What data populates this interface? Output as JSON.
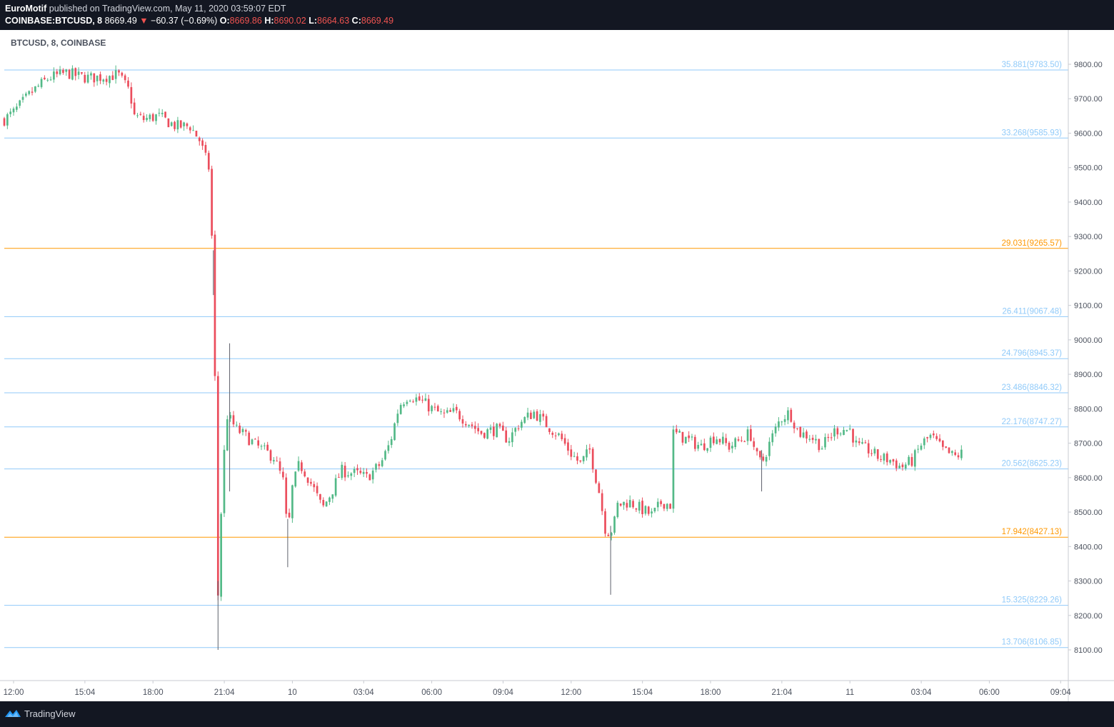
{
  "header": {
    "author": "EuroMotif",
    "published_text": " published on TradingView.com, May 11, 2020 03:59:07 EDT",
    "symbol": "COINBASE:BTCUSD, 8",
    "last": "8669.49",
    "change": "−60.37 (−0.69%)",
    "o_label": "O:",
    "o_value": "8669.86",
    "h_label": "H:",
    "h_value": "8690.02",
    "l_label": "L:",
    "l_value": "8664.63",
    "c_label": "C:",
    "c_value": "8669.49"
  },
  "footer": {
    "brand": "TradingView",
    "logo_icon": "tradingview-logo-icon"
  },
  "colors": {
    "up": "#26a69a",
    "up_body": "#53b987",
    "down": "#eb4d5c",
    "fib_blue": "#90caf9",
    "fib_orange": "#ff9800",
    "axis_text": "#4c525e"
  },
  "chart_data": {
    "type": "candlestick",
    "title": "BTCUSD, 8, COINBASE",
    "ylim": [
      8000,
      9880
    ],
    "y_ticks": [
      8100,
      8200,
      8300,
      8400,
      8500,
      8600,
      8700,
      8800,
      8900,
      9000,
      9100,
      9200,
      9300,
      9400,
      9500,
      9600,
      9700,
      9800
    ],
    "y_tick_labels": [
      "8100.00",
      "8200.00",
      "8300.00",
      "8400.00",
      "8500.00",
      "8600.00",
      "8700.00",
      "8800.00",
      "8900.00",
      "9000.00",
      "9100.00",
      "9200.00",
      "9300.00",
      "9400.00",
      "9500.00",
      "9600.00",
      "9700.00",
      "9800.00"
    ],
    "x_range_hours": [
      -0.4,
      45.4
    ],
    "x_ticks": [
      {
        "label": "12:00",
        "h": 0
      },
      {
        "label": "15:04",
        "h": 3.07
      },
      {
        "label": "18:00",
        "h": 6
      },
      {
        "label": "21:04",
        "h": 9.07
      },
      {
        "label": "10",
        "h": 12
      },
      {
        "label": "03:04",
        "h": 15.07
      },
      {
        "label": "06:00",
        "h": 18
      },
      {
        "label": "09:04",
        "h": 21.07
      },
      {
        "label": "12:00",
        "h": 24
      },
      {
        "label": "15:04",
        "h": 27.07
      },
      {
        "label": "18:00",
        "h": 30
      },
      {
        "label": "21:04",
        "h": 33.07
      },
      {
        "label": "11",
        "h": 36
      },
      {
        "label": "03:04",
        "h": 39.07
      },
      {
        "label": "06:00",
        "h": 42
      },
      {
        "label": "09:04",
        "h": 45.07
      }
    ],
    "fib_levels": [
      {
        "label": "35.881(9783.50)",
        "price": 9783.5,
        "color": "blue"
      },
      {
        "label": "33.268(9585.93)",
        "price": 9585.93,
        "color": "blue"
      },
      {
        "label": "29.031(9265.57)",
        "price": 9265.57,
        "color": "orange"
      },
      {
        "label": "26.411(9067.48)",
        "price": 9067.48,
        "color": "blue"
      },
      {
        "label": "24.796(8945.37)",
        "price": 8945.37,
        "color": "blue"
      },
      {
        "label": "23.486(8846.32)",
        "price": 8846.32,
        "color": "blue"
      },
      {
        "label": "22.176(8747.27)",
        "price": 8747.27,
        "color": "blue"
      },
      {
        "label": "20.562(8625.23)",
        "price": 8625.23,
        "color": "blue"
      },
      {
        "label": "17.942(8427.13)",
        "price": 8427.13,
        "color": "orange"
      },
      {
        "label": "15.325(8229.26)",
        "price": 8229.26,
        "color": "blue"
      },
      {
        "label": "13.706(8106.85)",
        "price": 8106.85,
        "color": "blue"
      }
    ],
    "close_anchors": [
      [
        -0.4,
        9640
      ],
      [
        0,
        9660
      ],
      [
        0.8,
        9720
      ],
      [
        1.5,
        9760
      ],
      [
        2.3,
        9775
      ],
      [
        2.8,
        9765
      ],
      [
        3.3,
        9760
      ],
      [
        4.0,
        9765
      ],
      [
        4.5,
        9770
      ],
      [
        5.0,
        9720
      ],
      [
        5.2,
        9650
      ],
      [
        5.6,
        9640
      ],
      [
        6.2,
        9650
      ],
      [
        7.0,
        9620
      ],
      [
        7.6,
        9620
      ],
      [
        8.0,
        9580
      ],
      [
        8.4,
        9500
      ],
      [
        8.6,
        9200
      ],
      [
        8.8,
        8260
      ],
      [
        9.0,
        8620
      ],
      [
        9.2,
        8780
      ],
      [
        9.6,
        8740
      ],
      [
        10.0,
        8720
      ],
      [
        10.5,
        8690
      ],
      [
        11.2,
        8660
      ],
      [
        11.6,
        8590
      ],
      [
        11.8,
        8430
      ],
      [
        12.0,
        8570
      ],
      [
        12.3,
        8640
      ],
      [
        12.6,
        8610
      ],
      [
        12.9,
        8570
      ],
      [
        13.3,
        8510
      ],
      [
        13.7,
        8560
      ],
      [
        14.1,
        8620
      ],
      [
        14.8,
        8610
      ],
      [
        15.2,
        8600
      ],
      [
        15.8,
        8640
      ],
      [
        16.2,
        8700
      ],
      [
        16.6,
        8810
      ],
      [
        17.0,
        8840
      ],
      [
        17.6,
        8820
      ],
      [
        18.0,
        8800
      ],
      [
        18.5,
        8780
      ],
      [
        19.0,
        8790
      ],
      [
        19.6,
        8760
      ],
      [
        20.1,
        8730
      ],
      [
        20.8,
        8740
      ],
      [
        21.3,
        8710
      ],
      [
        21.8,
        8760
      ],
      [
        22.4,
        8790
      ],
      [
        23.0,
        8750
      ],
      [
        23.5,
        8720
      ],
      [
        24.0,
        8670
      ],
      [
        24.4,
        8640
      ],
      [
        24.8,
        8680
      ],
      [
        25.2,
        8560
      ],
      [
        25.5,
        8440
      ],
      [
        25.8,
        8450
      ],
      [
        26.0,
        8520
      ],
      [
        26.5,
        8530
      ],
      [
        27.0,
        8510
      ],
      [
        27.5,
        8490
      ],
      [
        27.9,
        8530
      ],
      [
        28.3,
        8520
      ],
      [
        28.4,
        8730
      ],
      [
        29.0,
        8710
      ],
      [
        29.6,
        8690
      ],
      [
        30.2,
        8720
      ],
      [
        30.8,
        8690
      ],
      [
        31.3,
        8710
      ],
      [
        31.7,
        8730
      ],
      [
        32.0,
        8660
      ],
      [
        32.2,
        8640
      ],
      [
        32.6,
        8710
      ],
      [
        33.0,
        8770
      ],
      [
        33.4,
        8790
      ],
      [
        33.8,
        8730
      ],
      [
        34.3,
        8720
      ],
      [
        34.8,
        8690
      ],
      [
        35.4,
        8740
      ],
      [
        36.0,
        8740
      ],
      [
        36.3,
        8690
      ],
      [
        36.8,
        8680
      ],
      [
        37.2,
        8660
      ],
      [
        37.8,
        8650
      ],
      [
        38.2,
        8630
      ],
      [
        38.7,
        8650
      ],
      [
        39.1,
        8700
      ],
      [
        39.5,
        8720
      ],
      [
        40.0,
        8680
      ],
      [
        40.5,
        8660
      ],
      [
        40.8,
        8670
      ]
    ],
    "spike_wicks": [
      {
        "h": 8.6,
        "high": 9260,
        "low": 9130
      },
      {
        "h": 8.8,
        "high": 8300,
        "low": 8100
      },
      {
        "h": 9.3,
        "high": 8990,
        "low": 8560
      },
      {
        "h": 11.8,
        "high": 8480,
        "low": 8340
      },
      {
        "h": 25.7,
        "high": 8460,
        "low": 8260
      },
      {
        "h": 32.2,
        "high": 8680,
        "low": 8560
      }
    ]
  }
}
